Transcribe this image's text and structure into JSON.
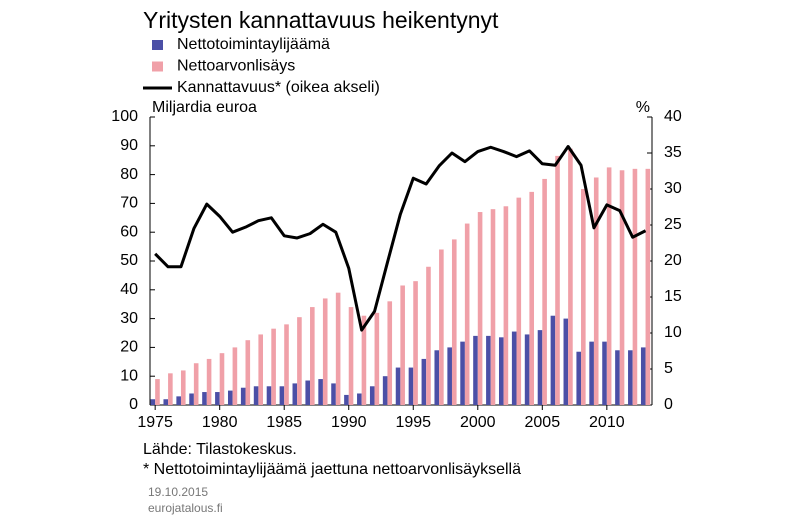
{
  "chart_data": {
    "type": "bar_line",
    "title": "Yritysten kannattavuus heikentynyt",
    "y_label": "Miljardia euroa",
    "y2_label": "%",
    "x": [
      1975,
      1976,
      1977,
      1978,
      1979,
      1980,
      1981,
      1982,
      1983,
      1984,
      1985,
      1986,
      1987,
      1988,
      1989,
      1990,
      1991,
      1992,
      1993,
      1994,
      1995,
      1996,
      1997,
      1998,
      1999,
      2000,
      2001,
      2002,
      2003,
      2004,
      2005,
      2006,
      2007,
      2008,
      2009,
      2010,
      2011,
      2012,
      2013
    ],
    "xlim": [
      1974.6,
      2013.5
    ],
    "xticks": [
      1975,
      1980,
      1985,
      1990,
      1995,
      2000,
      2005,
      2010
    ],
    "ylim": [
      0,
      100
    ],
    "yticks": [
      0,
      10,
      20,
      30,
      40,
      50,
      60,
      70,
      80,
      90,
      100
    ],
    "y2lim": [
      0,
      40
    ],
    "y2ticks": [
      0,
      5,
      10,
      15,
      20,
      25,
      30,
      35,
      40
    ],
    "series": [
      {
        "name": "Nettotoimintaylijäämä",
        "type": "bar",
        "color": "#4b4fa6",
        "values": [
          2,
          2,
          3,
          4,
          4.5,
          4.5,
          5,
          6,
          6.5,
          6.5,
          6.5,
          7.5,
          8.5,
          9,
          7.5,
          3.5,
          4,
          6.5,
          10,
          13,
          13,
          16,
          19,
          20,
          22,
          24,
          24,
          23.5,
          25.5,
          24.5,
          26,
          31,
          30,
          18.5,
          22,
          22,
          19,
          19,
          20
        ]
      },
      {
        "name": "Nettoarvonlisäys",
        "type": "bar",
        "color": "#f0a0a8",
        "values": [
          9,
          11,
          12,
          14.5,
          16,
          18,
          20,
          22.5,
          24.5,
          26.5,
          28,
          30.5,
          34,
          37,
          39,
          34,
          31,
          32,
          36,
          41.5,
          43,
          48,
          54,
          57.5,
          63,
          67,
          68,
          69,
          72,
          74,
          78.5,
          86.5,
          89,
          75,
          79,
          82.5,
          81.5,
          82,
          82
        ]
      },
      {
        "name": "Kannattavuus*  (oikea akseli)",
        "type": "line",
        "color": "#000000",
        "axis": "y2",
        "values": [
          21,
          19.2,
          19.2,
          24.5,
          27.9,
          26.2,
          24,
          24.7,
          25.6,
          26,
          23.5,
          23.2,
          23.8,
          25.1,
          24,
          19,
          10.4,
          13,
          19.8,
          26.5,
          31.5,
          30.7,
          33.2,
          35,
          33.8,
          35.2,
          35.8,
          35.2,
          34.5,
          35.3,
          33.5,
          33.3,
          35.9,
          33.3,
          24.6,
          27.8,
          27,
          23.3,
          24.2
        ]
      }
    ],
    "source": "Lähde: Tilastokeskus.",
    "note": "* Nettotoimintaylijäämä jaettuna nettoarvonlisäyksellä",
    "date": "19.10.2015",
    "site": "eurojatalous.fi"
  }
}
